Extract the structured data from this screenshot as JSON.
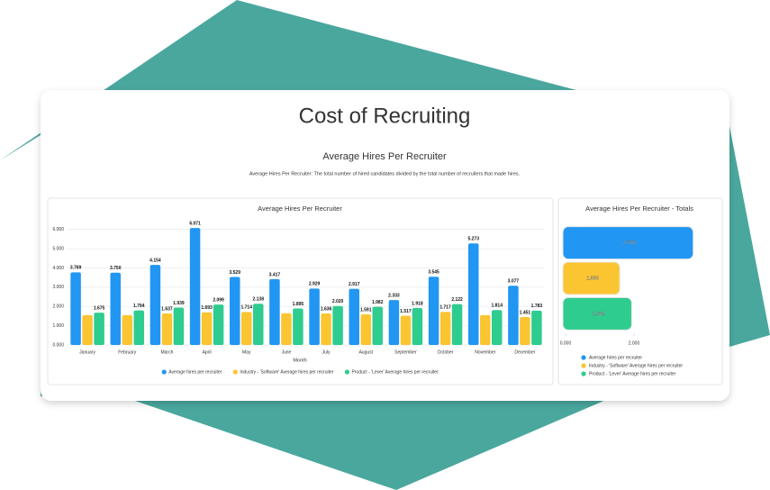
{
  "header": {
    "title": "Cost of Recruiting",
    "subtitle": "Average Hires Per Recruiter",
    "description": "Average Hires Per Recruiter: The total number of hired candidates divided by the total number of recruiters that made hires."
  },
  "chart_data": [
    {
      "type": "bar",
      "title": "Average Hires Per Recruiter",
      "x_label": "Month",
      "categories": [
        "January",
        "February",
        "March",
        "April",
        "May",
        "June",
        "July",
        "August",
        "September",
        "October",
        "November",
        "December"
      ],
      "series": [
        {
          "name": "Average hires per recruiter",
          "color": "#2196f3",
          "values": [
            3.769,
            3.75,
            4.154,
            6.071,
            3.529,
            3.417,
            2.929,
            2.917,
            2.333,
            3.545,
            5.273,
            3.077
          ],
          "value_labels": [
            "3.769",
            "3.750",
            "4.154",
            "6.071",
            "3.529",
            "3.417",
            "2.929",
            "2.917",
            "2.333",
            "3.545",
            "5.273",
            "3.077"
          ]
        },
        {
          "name": "Industry - 'Software' Average hires per recruiter",
          "color": "#fbc531",
          "values": [
            1.55,
            1.55,
            1.637,
            1.693,
            1.714,
            1.65,
            1.636,
            1.591,
            1.517,
            1.717,
            1.55,
            1.451
          ],
          "value_labels": [
            null,
            null,
            "1.637",
            "1.693",
            "1.714",
            null,
            "1.636",
            "1.591",
            "1.517",
            "1.717",
            null,
            "1.451"
          ]
        },
        {
          "name": "Product - 'Lever' Average hires per recruiter",
          "color": "#2ecc8f",
          "values": [
            1.675,
            1.794,
            1.939,
            2.099,
            2.138,
            1.895,
            2.02,
            1.982,
            1.918,
            2.122,
            1.814,
            1.783
          ],
          "value_labels": [
            "1.675",
            "1.794",
            "1.939",
            "2.099",
            "2.138",
            "1.895",
            "2.020",
            "1.982",
            "1.918",
            "2.122",
            "1.814",
            "1.783"
          ]
        }
      ],
      "ylim": [
        0,
        6.5
      ],
      "yticks": [
        {
          "value": 0,
          "label": "0.000"
        },
        {
          "value": 1,
          "label": "1.000"
        },
        {
          "value": 2,
          "label": "2.000"
        },
        {
          "value": 3,
          "label": "3.000"
        },
        {
          "value": 4,
          "label": "4.000"
        },
        {
          "value": 5,
          "label": "5.000"
        },
        {
          "value": 6,
          "label": "6.000"
        }
      ],
      "grid": true,
      "legend": "bottom"
    },
    {
      "type": "hbar",
      "title": "Average Hires Per Recruiter - Totals",
      "series": [
        {
          "name": "Average hires per recruiter",
          "color": "#2196f3",
          "values": [
            3.73
          ],
          "value_labels": [
            "3.730"
          ]
        },
        {
          "name": "Industry - 'Software' Average hires per recruiter",
          "color": "#fbc531",
          "values": [
            1.583
          ],
          "value_labels": [
            "1.583"
          ]
        },
        {
          "name": "Product - 'Lever' Average hires per recruiter",
          "color": "#2ecc8f",
          "values": [
            1.932
          ],
          "value_labels": [
            "1.932"
          ]
        }
      ],
      "xlim": [
        0,
        4
      ],
      "xticks": [
        {
          "value": 0,
          "label": "0.000"
        },
        {
          "value": 2,
          "label": "2.000"
        }
      ],
      "legend": "bottom"
    }
  ]
}
